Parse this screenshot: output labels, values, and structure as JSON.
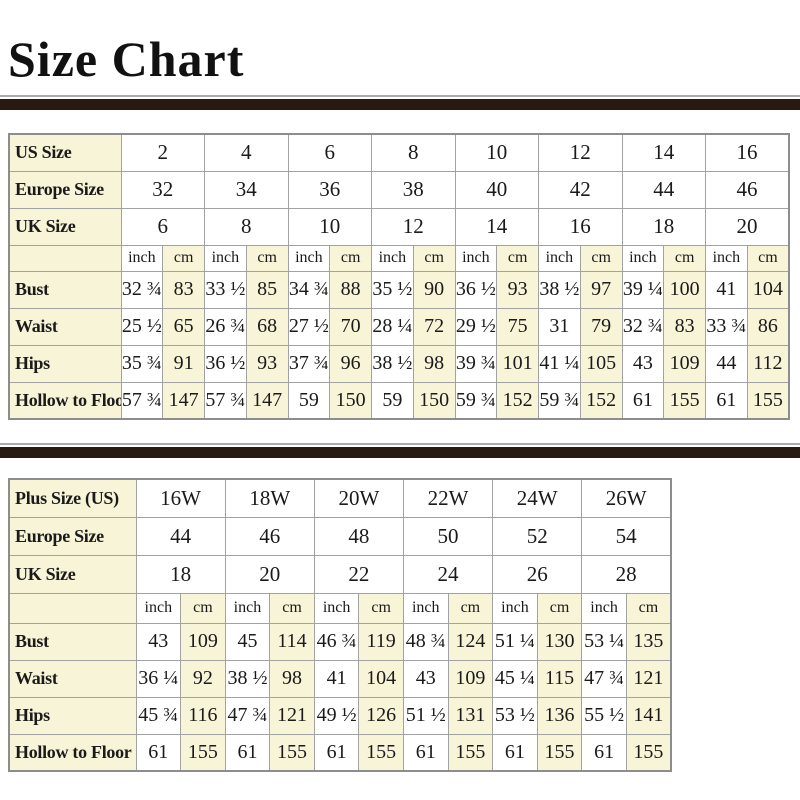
{
  "title": "Size Chart",
  "colors": {
    "cream_cell": "#f8f4d8",
    "divider_bar": "#281a10",
    "cell_border": "#a2a2a2"
  },
  "units": {
    "inch": "inch",
    "cm": "cm"
  },
  "standard_table": {
    "size_rows": [
      {
        "label": "US Size",
        "values": [
          "2",
          "4",
          "6",
          "8",
          "10",
          "12",
          "14",
          "16"
        ]
      },
      {
        "label": "Europe Size",
        "values": [
          "32",
          "34",
          "36",
          "38",
          "40",
          "42",
          "44",
          "46"
        ]
      },
      {
        "label": "UK Size",
        "values": [
          "6",
          "8",
          "10",
          "12",
          "14",
          "16",
          "18",
          "20"
        ]
      }
    ],
    "measure_rows": [
      {
        "label": "Bust",
        "values": [
          [
            "32 ¾",
            "83"
          ],
          [
            "33 ½",
            "85"
          ],
          [
            "34 ¾",
            "88"
          ],
          [
            "35 ½",
            "90"
          ],
          [
            "36 ½",
            "93"
          ],
          [
            "38 ½",
            "97"
          ],
          [
            "39 ¼",
            "100"
          ],
          [
            "41",
            "104"
          ]
        ]
      },
      {
        "label": "Waist",
        "values": [
          [
            "25 ½",
            "65"
          ],
          [
            "26 ¾",
            "68"
          ],
          [
            "27 ½",
            "70"
          ],
          [
            "28 ¼",
            "72"
          ],
          [
            "29 ½",
            "75"
          ],
          [
            "31",
            "79"
          ],
          [
            "32 ¾",
            "83"
          ],
          [
            "33 ¾",
            "86"
          ]
        ]
      },
      {
        "label": "Hips",
        "values": [
          [
            "35 ¾",
            "91"
          ],
          [
            "36 ½",
            "93"
          ],
          [
            "37 ¾",
            "96"
          ],
          [
            "38 ½",
            "98"
          ],
          [
            "39 ¾",
            "101"
          ],
          [
            "41 ¼",
            "105"
          ],
          [
            "43",
            "109"
          ],
          [
            "44",
            "112"
          ]
        ]
      },
      {
        "label": "Hollow to Floor",
        "values": [
          [
            "57 ¾",
            "147"
          ],
          [
            "57 ¾",
            "147"
          ],
          [
            "59",
            "150"
          ],
          [
            "59",
            "150"
          ],
          [
            "59 ¾",
            "152"
          ],
          [
            "59 ¾",
            "152"
          ],
          [
            "61",
            "155"
          ],
          [
            "61",
            "155"
          ]
        ]
      }
    ]
  },
  "plus_table": {
    "size_rows": [
      {
        "label": "Plus Size (US)",
        "values": [
          "16W",
          "18W",
          "20W",
          "22W",
          "24W",
          "26W"
        ]
      },
      {
        "label": "Europe Size",
        "values": [
          "44",
          "46",
          "48",
          "50",
          "52",
          "54"
        ]
      },
      {
        "label": "UK Size",
        "values": [
          "18",
          "20",
          "22",
          "24",
          "26",
          "28"
        ]
      }
    ],
    "measure_rows": [
      {
        "label": "Bust",
        "values": [
          [
            "43",
            "109"
          ],
          [
            "45",
            "114"
          ],
          [
            "46 ¾",
            "119"
          ],
          [
            "48 ¾",
            "124"
          ],
          [
            "51 ¼",
            "130"
          ],
          [
            "53 ¼",
            "135"
          ]
        ]
      },
      {
        "label": "Waist",
        "values": [
          [
            "36 ¼",
            "92"
          ],
          [
            "38 ½",
            "98"
          ],
          [
            "41",
            "104"
          ],
          [
            "43",
            "109"
          ],
          [
            "45 ¼",
            "115"
          ],
          [
            "47 ¾",
            "121"
          ]
        ]
      },
      {
        "label": "Hips",
        "values": [
          [
            "45 ¾",
            "116"
          ],
          [
            "47 ¾",
            "121"
          ],
          [
            "49 ½",
            "126"
          ],
          [
            "51 ½",
            "131"
          ],
          [
            "53 ½",
            "136"
          ],
          [
            "55 ½",
            "141"
          ]
        ]
      },
      {
        "label": "Hollow to Floor",
        "values": [
          [
            "61",
            "155"
          ],
          [
            "61",
            "155"
          ],
          [
            "61",
            "155"
          ],
          [
            "61",
            "155"
          ],
          [
            "61",
            "155"
          ],
          [
            "61",
            "155"
          ]
        ]
      }
    ]
  }
}
